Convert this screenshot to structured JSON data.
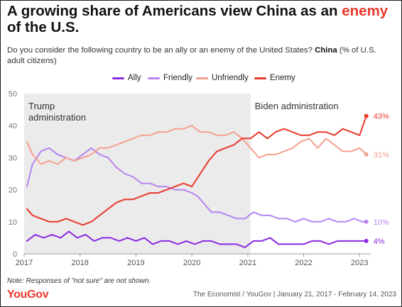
{
  "header": {
    "title_prefix": "A growing share of Americans view China as an ",
    "title_highlight": "enemy",
    "title_suffix": "of the U.S.",
    "subtitle_text": "Do you consider the following country to be an ally or an enemy of the United States? ",
    "subtitle_bold": "China",
    "subtitle_tail": " (% of U.S. adult citizens)"
  },
  "footer": {
    "note": "Note: Responses of \"not sure\" are not shown.",
    "brand": "YouGov",
    "source": "The Economist / YouGov | January 21, 2017 - February 14, 2023"
  },
  "colors": {
    "ally": "#8a2be2",
    "friendly": "#b784f0",
    "unfriendly": "#f4a08f",
    "enemy": "#e8392c",
    "shade": "#ebebeb",
    "axis": "#999999"
  },
  "chart_data": {
    "type": "line",
    "xlim": [
      2017.0,
      2023.2
    ],
    "ylim": [
      0,
      50
    ],
    "xticks": [
      "2017",
      "2018",
      "2019",
      "2020",
      "2021",
      "2022",
      "2023"
    ],
    "xtick_values": [
      2017,
      2018,
      2019,
      2020,
      2021,
      2022,
      2023
    ],
    "yticks": [
      "0",
      "10",
      "20",
      "30",
      "40",
      "50"
    ],
    "ytick_values": [
      0,
      10,
      20,
      30,
      40,
      50
    ],
    "grid": false,
    "legend_position": "top",
    "periods": [
      {
        "label": "Trump administration",
        "start": 2017.0,
        "end": 2021.05,
        "shaded": true
      },
      {
        "label": "Biden administration",
        "start": 2021.05,
        "end": 2023.2,
        "shaded": false
      }
    ],
    "series": [
      {
        "name": "Ally",
        "color_key": "ally",
        "end_label": "4%",
        "x": [
          2017.05,
          2017.2,
          2017.35,
          2017.5,
          2017.65,
          2017.8,
          2017.95,
          2018.1,
          2018.25,
          2018.4,
          2018.55,
          2018.7,
          2018.85,
          2019.0,
          2019.15,
          2019.3,
          2019.45,
          2019.6,
          2019.75,
          2019.9,
          2020.05,
          2020.2,
          2020.35,
          2020.5,
          2020.65,
          2020.8,
          2020.95,
          2021.1,
          2021.25,
          2021.4,
          2021.55,
          2021.7,
          2021.85,
          2022.0,
          2022.15,
          2022.3,
          2022.45,
          2022.6,
          2022.75,
          2022.9,
          2023.05,
          2023.12
        ],
        "y": [
          4,
          6,
          5,
          6,
          5,
          7,
          5,
          6,
          4,
          5,
          5,
          4,
          5,
          4,
          5,
          3,
          4,
          4,
          3,
          4,
          3,
          4,
          4,
          3,
          3,
          3,
          2,
          4,
          4,
          5,
          3,
          3,
          3,
          3,
          4,
          4,
          3,
          4,
          4,
          4,
          4,
          4
        ]
      },
      {
        "name": "Friendly",
        "color_key": "friendly",
        "end_label": "10%",
        "x": [
          2017.05,
          2017.15,
          2017.3,
          2017.45,
          2017.6,
          2017.75,
          2017.9,
          2018.05,
          2018.2,
          2018.35,
          2018.5,
          2018.65,
          2018.8,
          2018.95,
          2019.1,
          2019.25,
          2019.4,
          2019.55,
          2019.7,
          2019.85,
          2020.0,
          2020.1,
          2020.2,
          2020.35,
          2020.5,
          2020.65,
          2020.8,
          2020.95,
          2021.1,
          2021.25,
          2021.4,
          2021.55,
          2021.7,
          2021.85,
          2022.0,
          2022.15,
          2022.3,
          2022.45,
          2022.6,
          2022.75,
          2022.9,
          2023.05,
          2023.12
        ],
        "y": [
          21,
          28,
          32,
          33,
          31,
          30,
          29,
          31,
          33,
          31,
          30,
          27,
          25,
          24,
          22,
          22,
          21,
          21,
          20,
          20,
          19,
          18,
          16,
          13,
          13,
          12,
          11,
          11,
          13,
          12,
          12,
          11,
          11,
          10,
          11,
          10,
          10,
          11,
          10,
          10,
          11,
          10,
          10
        ]
      },
      {
        "name": "Unfriendly",
        "color_key": "unfriendly",
        "end_label": "31%",
        "x": [
          2017.05,
          2017.15,
          2017.3,
          2017.45,
          2017.6,
          2017.75,
          2017.9,
          2018.05,
          2018.2,
          2018.35,
          2018.5,
          2018.65,
          2018.8,
          2018.95,
          2019.1,
          2019.25,
          2019.4,
          2019.55,
          2019.7,
          2019.85,
          2020.0,
          2020.15,
          2020.3,
          2020.45,
          2020.6,
          2020.75,
          2020.9,
          2021.05,
          2021.2,
          2021.35,
          2021.5,
          2021.65,
          2021.8,
          2021.95,
          2022.1,
          2022.25,
          2022.4,
          2022.55,
          2022.7,
          2022.85,
          2023.0,
          2023.12
        ],
        "y": [
          35,
          31,
          28,
          29,
          28,
          30,
          29,
          30,
          31,
          33,
          33,
          34,
          35,
          36,
          37,
          37,
          38,
          38,
          39,
          39,
          40,
          38,
          38,
          37,
          37,
          38,
          36,
          33,
          30,
          31,
          31,
          32,
          33,
          35,
          36,
          33,
          36,
          34,
          32,
          32,
          33,
          31
        ]
      },
      {
        "name": "Enemy",
        "color_key": "enemy",
        "end_label": "43%",
        "x": [
          2017.05,
          2017.15,
          2017.3,
          2017.45,
          2017.6,
          2017.75,
          2017.9,
          2018.05,
          2018.2,
          2018.35,
          2018.5,
          2018.65,
          2018.8,
          2018.95,
          2019.1,
          2019.25,
          2019.4,
          2019.55,
          2019.7,
          2019.85,
          2020.0,
          2020.15,
          2020.3,
          2020.45,
          2020.6,
          2020.75,
          2020.9,
          2021.05,
          2021.2,
          2021.35,
          2021.5,
          2021.65,
          2021.8,
          2021.95,
          2022.1,
          2022.25,
          2022.4,
          2022.55,
          2022.7,
          2022.85,
          2023.0,
          2023.12
        ],
        "y": [
          14,
          12,
          11,
          10,
          10,
          11,
          10,
          9,
          10,
          12,
          14,
          16,
          17,
          17,
          18,
          19,
          19,
          20,
          21,
          22,
          21,
          25,
          29,
          32,
          33,
          34,
          36,
          36,
          38,
          36,
          38,
          39,
          38,
          37,
          37,
          38,
          38,
          37,
          39,
          38,
          37,
          43
        ]
      }
    ]
  }
}
